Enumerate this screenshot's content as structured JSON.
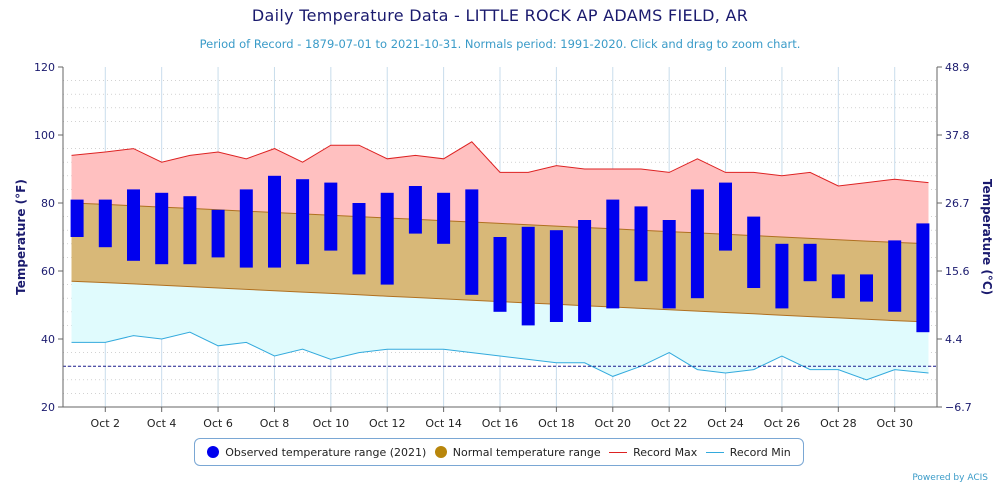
{
  "title": "Daily Temperature Data - LITTLE ROCK AP ADAMS FIELD, AR",
  "subtitle": "Period of Record - 1879-07-01 to 2021-10-31. Normals period: 1991-2020. Click and drag to zoom chart.",
  "credits": "Powered by ACIS",
  "legend": {
    "observed": "Observed temperature range (2021)",
    "normal": "Normal temperature range",
    "record_max": "Record Max",
    "record_min": "Record Min"
  },
  "colors": {
    "observed": "#0000ee",
    "normal_fill": "#d8b878",
    "normal_dot": "#b8860b",
    "normal_edge": "#b07020",
    "record_max_line": "#dd2222",
    "record_max_fill": "#ffc0c0",
    "record_min_line": "#33aadd",
    "record_min_fill": "#e0fbfd",
    "freeze_line": "#1a1a8e",
    "grid": "#c8dcec",
    "axis_text": "#1a1a6e"
  },
  "chart_data": {
    "type": "bar",
    "xlabel": "",
    "ylabel": "Temperature (°F)",
    "ylabel_right": "Temperature (°C)",
    "ylim": [
      20,
      120
    ],
    "yticks": [
      20,
      40,
      60,
      80,
      100,
      120
    ],
    "yticks_right": [
      "−6.7",
      "4.4",
      "15.6",
      "26.7",
      "37.8",
      "48.9"
    ],
    "x_tick_labels": [
      "Oct 2",
      "Oct 4",
      "Oct 6",
      "Oct 8",
      "Oct 10",
      "Oct 12",
      "Oct 14",
      "Oct 16",
      "Oct 18",
      "Oct 20",
      "Oct 22",
      "Oct 24",
      "Oct 26",
      "Oct 28",
      "Oct 30"
    ],
    "x_tick_days": [
      2,
      4,
      6,
      8,
      10,
      12,
      14,
      16,
      18,
      20,
      22,
      24,
      26,
      28,
      30
    ],
    "days": [
      1,
      2,
      3,
      4,
      5,
      6,
      7,
      8,
      9,
      10,
      11,
      12,
      13,
      14,
      15,
      16,
      17,
      18,
      19,
      20,
      21,
      22,
      23,
      24,
      25,
      26,
      27,
      28,
      29,
      30,
      31
    ],
    "freeze_line": 32,
    "grid": true,
    "legend_position": "bottom",
    "series": [
      {
        "name": "Observed temperature range (2021)",
        "type": "columnrange",
        "high": [
          81,
          81,
          84,
          83,
          82,
          78,
          84,
          88,
          87,
          86,
          80,
          83,
          85,
          83,
          84,
          70,
          73,
          72,
          75,
          81,
          79,
          75,
          84,
          86,
          76,
          68,
          68,
          59,
          59,
          69,
          74
        ],
        "low": [
          70,
          67,
          63,
          62,
          62,
          64,
          61,
          61,
          62,
          66,
          59,
          56,
          71,
          68,
          53,
          48,
          44,
          45,
          45,
          49,
          57,
          49,
          52,
          66,
          55,
          49,
          57,
          52,
          51,
          48,
          42
        ]
      },
      {
        "name": "Normal temperature range",
        "type": "arearange",
        "high": [
          80,
          79.6,
          79.2,
          78.8,
          78.4,
          78,
          77.6,
          77.2,
          76.8,
          76.4,
          76,
          75.6,
          75.2,
          74.8,
          74.4,
          74,
          73.6,
          73.2,
          72.8,
          72.4,
          72,
          71.6,
          71.2,
          70.8,
          70.4,
          70,
          69.6,
          69.2,
          68.8,
          68.4,
          68
        ],
        "low": [
          57,
          56.6,
          56.2,
          55.8,
          55.4,
          55,
          54.6,
          54.2,
          53.8,
          53.4,
          53,
          52.6,
          52.2,
          51.8,
          51.4,
          51,
          50.6,
          50.2,
          49.8,
          49.4,
          49,
          48.6,
          48.2,
          47.8,
          47.4,
          47,
          46.6,
          46.2,
          45.8,
          45.4,
          45
        ]
      },
      {
        "name": "Record Max",
        "type": "line",
        "values": [
          94,
          95,
          96,
          92,
          94,
          95,
          93,
          96,
          92,
          97,
          97,
          93,
          94,
          93,
          98,
          89,
          89,
          91,
          90,
          90,
          90,
          89,
          93,
          89,
          89,
          88,
          89,
          85,
          86,
          87,
          86
        ]
      },
      {
        "name": "Record Min",
        "type": "line",
        "values": [
          39,
          39,
          41,
          40,
          42,
          38,
          39,
          35,
          37,
          34,
          36,
          37,
          37,
          37,
          36,
          35,
          34,
          33,
          33,
          29,
          32,
          36,
          31,
          30,
          31,
          35,
          31,
          31,
          28,
          31,
          30
        ]
      }
    ]
  }
}
